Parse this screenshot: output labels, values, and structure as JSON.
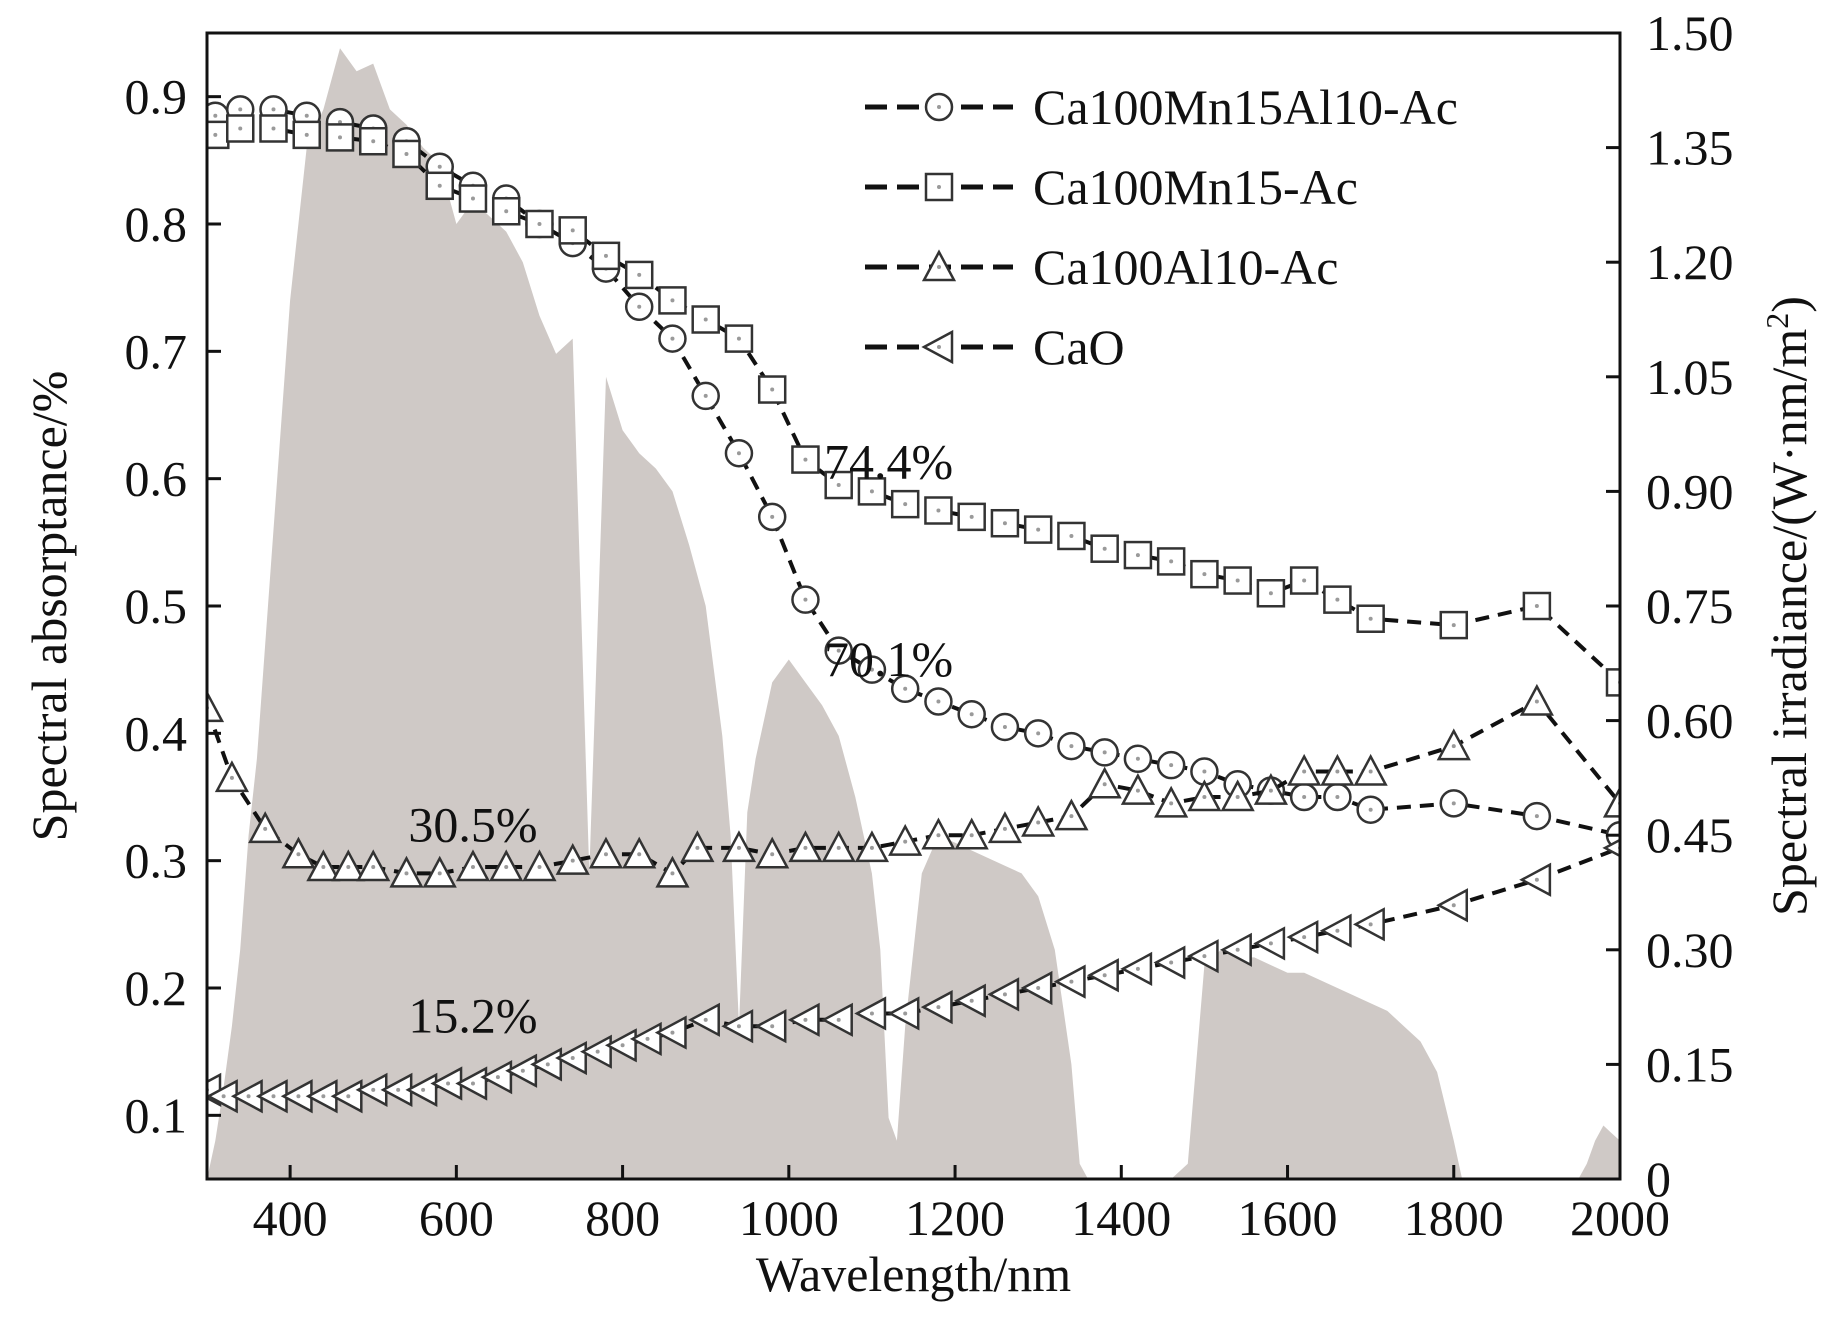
{
  "chart_data": {
    "type": "line",
    "xlabel": "Wavelength/nm",
    "ylabel": "Spectral absorptance/%",
    "y2label_main": "Spectral irradiance/(W·nm/m",
    "y2label_sup": "2",
    "y2label_end": ")",
    "xlim": [
      300,
      2000
    ],
    "ylim": [
      0.05,
      0.95
    ],
    "y2lim": [
      0,
      1.5
    ],
    "x_ticks": [
      "400",
      "600",
      "800",
      "1000",
      "1200",
      "1400",
      "1600",
      "1800",
      "2000"
    ],
    "x_tick_values": [
      400,
      600,
      800,
      1000,
      1200,
      1400,
      1600,
      1800,
      2000
    ],
    "y_ticks": [
      "0.1",
      "0.2",
      "0.3",
      "0.4",
      "0.5",
      "0.6",
      "0.7",
      "0.8",
      "0.9"
    ],
    "y_tick_values": [
      0.1,
      0.2,
      0.3,
      0.4,
      0.5,
      0.6,
      0.7,
      0.8,
      0.9
    ],
    "y2_ticks": [
      "0",
      "0.15",
      "0.30",
      "0.45",
      "0.60",
      "0.75",
      "0.90",
      "1.05",
      "1.20",
      "1.35",
      "1.50"
    ],
    "y2_tick_values": [
      0,
      0.15,
      0.3,
      0.45,
      0.6,
      0.75,
      0.9,
      1.05,
      1.2,
      1.35,
      1.5
    ],
    "legend_position": "top-right",
    "colors": {
      "irradiance_fill": "#cfc9c6",
      "line": "#111111",
      "marker_edge": "#333333",
      "marker_fill": "#ffffff",
      "dot": "#9a9a9a"
    },
    "irradiance": {
      "axis": "right",
      "x": [
        300,
        310,
        320,
        330,
        340,
        350,
        360,
        370,
        380,
        390,
        400,
        420,
        440,
        460,
        480,
        500,
        520,
        540,
        560,
        580,
        600,
        620,
        640,
        660,
        680,
        700,
        720,
        740,
        760,
        780,
        800,
        820,
        840,
        860,
        880,
        900,
        920,
        930,
        940,
        950,
        960,
        980,
        1000,
        1020,
        1040,
        1060,
        1080,
        1100,
        1110,
        1120,
        1130,
        1140,
        1150,
        1160,
        1180,
        1200,
        1220,
        1240,
        1260,
        1280,
        1300,
        1320,
        1340,
        1350,
        1360,
        1380,
        1400,
        1420,
        1440,
        1460,
        1480,
        1500,
        1520,
        1540,
        1560,
        1580,
        1600,
        1620,
        1640,
        1660,
        1680,
        1700,
        1720,
        1740,
        1760,
        1780,
        1800,
        1810,
        1820,
        1900,
        1950,
        1960,
        1970,
        1980,
        1990,
        2000
      ],
      "y": [
        0.0,
        0.05,
        0.12,
        0.2,
        0.3,
        0.45,
        0.55,
        0.7,
        0.85,
        1.0,
        1.15,
        1.35,
        1.4,
        1.48,
        1.45,
        1.46,
        1.4,
        1.38,
        1.35,
        1.33,
        1.25,
        1.28,
        1.26,
        1.24,
        1.2,
        1.13,
        1.08,
        1.1,
        0.4,
        1.05,
        0.98,
        0.95,
        0.93,
        0.9,
        0.83,
        0.75,
        0.58,
        0.45,
        0.2,
        0.48,
        0.55,
        0.65,
        0.68,
        0.65,
        0.62,
        0.58,
        0.5,
        0.4,
        0.3,
        0.08,
        0.05,
        0.2,
        0.3,
        0.4,
        0.45,
        0.44,
        0.43,
        0.42,
        0.41,
        0.4,
        0.37,
        0.3,
        0.15,
        0.02,
        0.0,
        0.0,
        0.0,
        0.0,
        0.0,
        0.0,
        0.02,
        0.28,
        0.3,
        0.29,
        0.29,
        0.28,
        0.27,
        0.27,
        0.26,
        0.25,
        0.24,
        0.23,
        0.22,
        0.2,
        0.18,
        0.14,
        0.05,
        0.0,
        0.0,
        0.0,
        0.0,
        0.02,
        0.05,
        0.07,
        0.06,
        0.05
      ]
    },
    "series": [
      {
        "name": "Ca100Mn15Al10-Ac",
        "marker": "circle",
        "x": [
          310,
          340,
          380,
          420,
          460,
          500,
          540,
          580,
          620,
          660,
          700,
          740,
          780,
          820,
          860,
          900,
          940,
          980,
          1020,
          1060,
          1100,
          1140,
          1180,
          1220,
          1260,
          1300,
          1340,
          1380,
          1420,
          1460,
          1500,
          1540,
          1580,
          1620,
          1660,
          1700,
          1800,
          1900,
          2000
        ],
        "y": [
          0.885,
          0.89,
          0.89,
          0.885,
          0.88,
          0.875,
          0.865,
          0.845,
          0.83,
          0.82,
          0.8,
          0.785,
          0.765,
          0.735,
          0.71,
          0.665,
          0.62,
          0.57,
          0.505,
          0.465,
          0.45,
          0.435,
          0.425,
          0.415,
          0.405,
          0.4,
          0.39,
          0.385,
          0.38,
          0.375,
          0.37,
          0.36,
          0.355,
          0.35,
          0.35,
          0.34,
          0.345,
          0.335,
          0.32
        ]
      },
      {
        "name": "Ca100Mn15-Ac",
        "marker": "square",
        "x": [
          310,
          340,
          380,
          420,
          460,
          500,
          540,
          580,
          620,
          660,
          700,
          740,
          780,
          820,
          860,
          900,
          940,
          980,
          1020,
          1060,
          1100,
          1140,
          1180,
          1220,
          1260,
          1300,
          1340,
          1380,
          1420,
          1460,
          1500,
          1540,
          1580,
          1620,
          1660,
          1700,
          1800,
          1900,
          2000
        ],
        "y": [
          0.87,
          0.875,
          0.875,
          0.87,
          0.868,
          0.865,
          0.855,
          0.83,
          0.82,
          0.81,
          0.8,
          0.795,
          0.775,
          0.76,
          0.74,
          0.725,
          0.71,
          0.67,
          0.615,
          0.595,
          0.59,
          0.58,
          0.575,
          0.57,
          0.565,
          0.56,
          0.555,
          0.545,
          0.54,
          0.535,
          0.525,
          0.52,
          0.51,
          0.52,
          0.505,
          0.49,
          0.485,
          0.5,
          0.44
        ]
      },
      {
        "name": "Ca100Al10-Ac",
        "marker": "triangle-up",
        "x": [
          300,
          330,
          370,
          410,
          440,
          470,
          500,
          540,
          580,
          620,
          660,
          700,
          740,
          780,
          820,
          860,
          890,
          940,
          980,
          1020,
          1060,
          1100,
          1140,
          1180,
          1220,
          1260,
          1300,
          1340,
          1380,
          1420,
          1460,
          1500,
          1540,
          1580,
          1620,
          1660,
          1700,
          1800,
          1900,
          2000
        ],
        "y": [
          0.42,
          0.365,
          0.325,
          0.305,
          0.295,
          0.295,
          0.295,
          0.29,
          0.29,
          0.295,
          0.295,
          0.295,
          0.3,
          0.305,
          0.305,
          0.29,
          0.31,
          0.31,
          0.305,
          0.31,
          0.31,
          0.31,
          0.315,
          0.32,
          0.32,
          0.325,
          0.33,
          0.335,
          0.36,
          0.355,
          0.345,
          0.35,
          0.35,
          0.355,
          0.37,
          0.37,
          0.37,
          0.39,
          0.425,
          0.345
        ]
      },
      {
        "name": "CaO",
        "marker": "triangle-left",
        "x": [
          300,
          320,
          350,
          380,
          410,
          440,
          470,
          500,
          530,
          560,
          590,
          620,
          650,
          680,
          710,
          740,
          770,
          800,
          830,
          860,
          900,
          940,
          980,
          1020,
          1060,
          1100,
          1140,
          1180,
          1220,
          1260,
          1300,
          1340,
          1380,
          1420,
          1460,
          1500,
          1540,
          1580,
          1620,
          1660,
          1700,
          1800,
          1900,
          2000
        ],
        "y": [
          0.12,
          0.115,
          0.115,
          0.115,
          0.115,
          0.115,
          0.115,
          0.12,
          0.12,
          0.12,
          0.125,
          0.125,
          0.13,
          0.135,
          0.14,
          0.145,
          0.15,
          0.155,
          0.16,
          0.165,
          0.175,
          0.17,
          0.17,
          0.175,
          0.175,
          0.18,
          0.18,
          0.185,
          0.19,
          0.195,
          0.2,
          0.205,
          0.21,
          0.215,
          0.22,
          0.225,
          0.23,
          0.235,
          0.24,
          0.245,
          0.25,
          0.265,
          0.285,
          0.31
        ]
      }
    ],
    "annotations": [
      {
        "text": "74.4%",
        "x": 1120,
        "y": 0.6
      },
      {
        "text": "70.1%",
        "x": 1120,
        "y": 0.445
      },
      {
        "text": "30.5%",
        "x": 620,
        "y": 0.315
      },
      {
        "text": "15.2%",
        "x": 620,
        "y": 0.165
      }
    ]
  }
}
